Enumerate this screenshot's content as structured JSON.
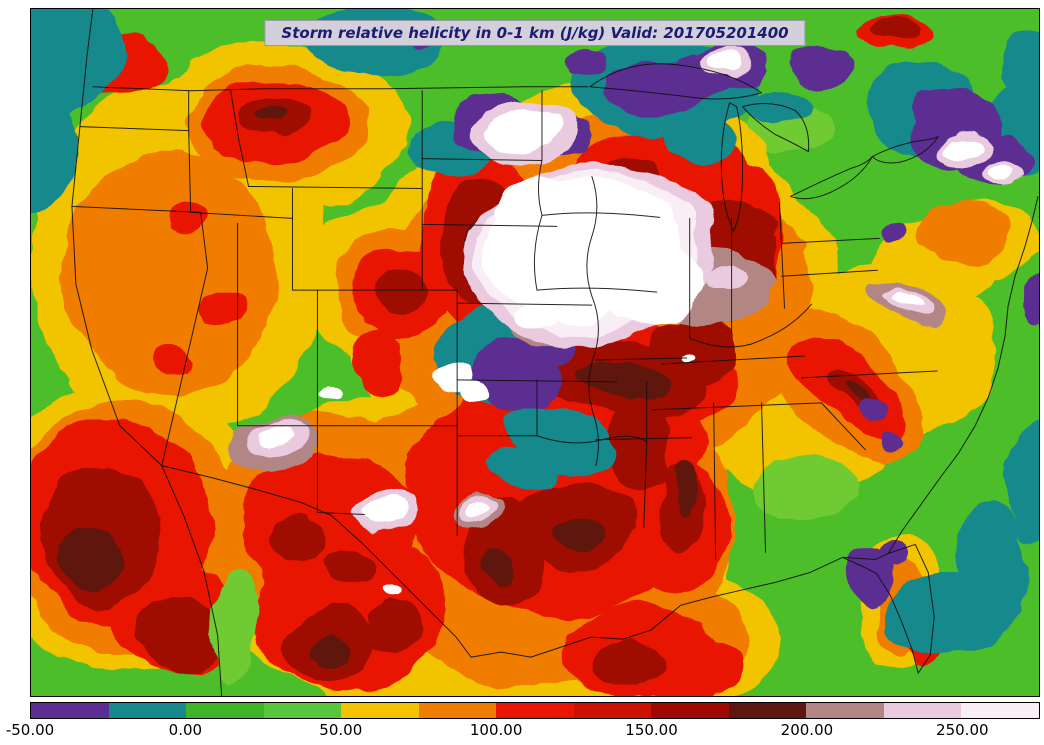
{
  "title": "Storm relative helicity in 0-1 km (J/kg) Valid: 201705201400",
  "chart_data": {
    "type": "heatmap",
    "title": "Storm relative helicity in 0-1 km (J/kg) Valid: 201705201400",
    "variable": "Storm relative helicity in 0-1 km",
    "units": "J/kg",
    "valid": "201705201400",
    "region": "Contiguous United States with state boundaries and coastlines overlaid",
    "legend_position": "bottom",
    "grid": false,
    "colorbar": {
      "orientation": "horizontal",
      "range": [
        -50,
        275
      ],
      "levels": [
        -50,
        -25,
        0,
        25,
        50,
        75,
        100,
        125,
        150,
        175,
        200,
        225,
        250,
        275
      ],
      "colors": [
        "#5C2E91",
        "#17898C",
        "#3FB32A",
        "#58C53C",
        "#F2C400",
        "#F07D00",
        "#E81600",
        "#CE1000",
        "#9E0A00",
        "#5E1710",
        "#B38686",
        "#E9CADF",
        "#F9EEF6"
      ],
      "over_color": "#FFFFFF",
      "ticks": [
        -50,
        0,
        50,
        100,
        150,
        200,
        250
      ],
      "tick_labels": [
        "-50.00",
        "0.00",
        "50.00",
        "100.00",
        "150.00",
        "200.00",
        "250.00"
      ]
    },
    "notes": "Filled contour field; white regions exceed the top of the color scale"
  }
}
